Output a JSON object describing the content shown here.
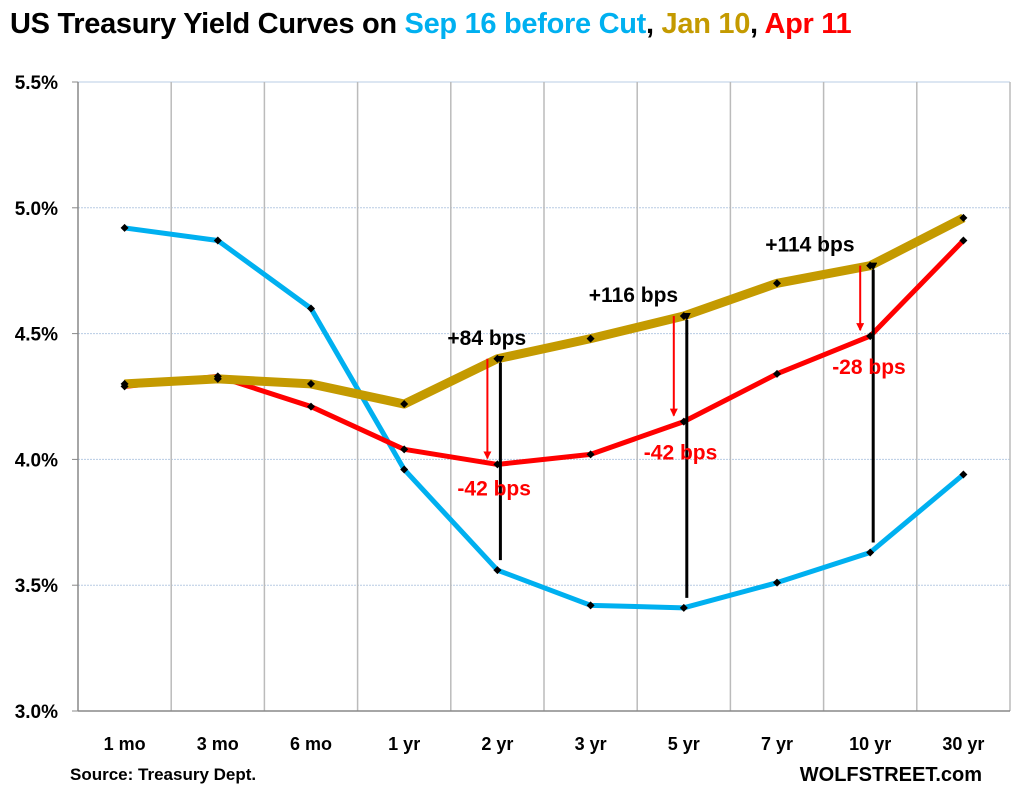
{
  "chart_data": {
    "type": "line",
    "title_parts": [
      {
        "text": "US Treasury Yield Curves on ",
        "color": "#000000"
      },
      {
        "text": "Sep 16 before Cut",
        "color": "#00b0f0"
      },
      {
        "text": ", ",
        "color": "#000000"
      },
      {
        "text": "Jan 10",
        "color": "#c49a00"
      },
      {
        "text": ", ",
        "color": "#000000"
      },
      {
        "text": "Apr 11",
        "color": "#ff0000"
      }
    ],
    "categories": [
      "1 mo",
      "3 mo",
      "6 mo",
      "1 yr",
      "2 yr",
      "3 yr",
      "5 yr",
      "7 yr",
      "10 yr",
      "30 yr"
    ],
    "ylim": [
      3.0,
      5.5
    ],
    "yticks": [
      "3.0%",
      "3.5%",
      "4.0%",
      "4.5%",
      "5.0%",
      "5.5%"
    ],
    "grid": true,
    "series": [
      {
        "name": "Sep 16 before Cut",
        "color": "#00b0f0",
        "values": [
          4.92,
          4.87,
          4.6,
          3.96,
          3.56,
          3.42,
          3.41,
          3.51,
          3.63,
          3.94
        ]
      },
      {
        "name": "Jan 10",
        "color": "#c49a00",
        "values": [
          4.3,
          4.32,
          4.3,
          4.22,
          4.4,
          4.48,
          4.57,
          4.7,
          4.77,
          4.96
        ]
      },
      {
        "name": "Apr 11",
        "color": "#ff0000",
        "values": [
          4.29,
          4.33,
          4.21,
          4.04,
          3.98,
          4.02,
          4.15,
          4.34,
          4.49,
          4.87
        ]
      }
    ],
    "annotations": [
      {
        "category": "2 yr",
        "rise_label": "+84 bps",
        "fall_label": "-42 bps"
      },
      {
        "category": "5 yr",
        "rise_label": "+116 bps",
        "fall_label": "-42 bps"
      },
      {
        "category": "10 yr",
        "rise_label": "+114 bps",
        "fall_label": "-28 bps"
      }
    ],
    "source": "Source: Treasury Dept.",
    "brand": "WOLFSTREET.com"
  }
}
